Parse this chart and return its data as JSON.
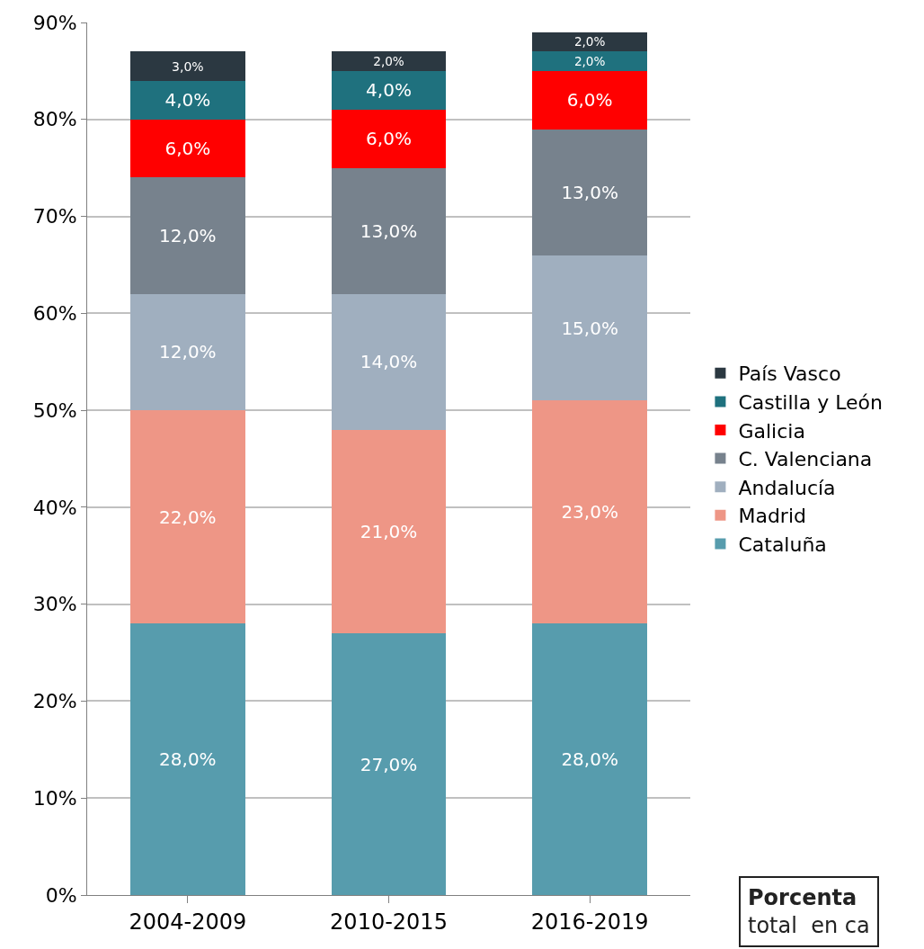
{
  "chart_data": {
    "type": "bar",
    "stacked": true,
    "categories": [
      "2004-2009",
      "2010-2015",
      "2016-2019"
    ],
    "series": [
      {
        "name": "Cataluña",
        "color": "#579cad",
        "values": [
          28,
          27,
          28
        ],
        "value_labels": [
          "28,0%",
          "27,0%",
          "28,0%"
        ]
      },
      {
        "name": "Madrid",
        "color": "#ee9686",
        "values": [
          22,
          21,
          23
        ],
        "value_labels": [
          "22,0%",
          "21,0%",
          "23,0%"
        ]
      },
      {
        "name": "Andalucía",
        "color": "#a0afbf",
        "values": [
          12,
          14,
          15
        ],
        "value_labels": [
          "12,0%",
          "14,0%",
          "15,0%"
        ]
      },
      {
        "name": "C. Valenciana",
        "color": "#77828d",
        "values": [
          12,
          13,
          13
        ],
        "value_labels": [
          "12,0%",
          "13,0%",
          "13,0%"
        ]
      },
      {
        "name": "Galicia",
        "color": "#ff0000",
        "values": [
          6,
          6,
          6
        ],
        "value_labels": [
          "6,0%",
          "6,0%",
          "6,0%"
        ]
      },
      {
        "name": "Castilla y León",
        "color": "#1f717e",
        "values": [
          4,
          4,
          2
        ],
        "value_labels": [
          "4,0%",
          "4,0%",
          "2,0%"
        ]
      },
      {
        "name": "País Vasco",
        "color": "#2b3841",
        "values": [
          3,
          2,
          2
        ],
        "value_labels": [
          "3,0%",
          "2,0%",
          "2,0%"
        ]
      }
    ],
    "ylim": [
      0,
      90
    ],
    "yticks": [
      {
        "value": 0,
        "label": "0%"
      },
      {
        "value": 10,
        "label": "10%"
      },
      {
        "value": 20,
        "label": "20%"
      },
      {
        "value": 30,
        "label": "30%"
      },
      {
        "value": 40,
        "label": "40%"
      },
      {
        "value": 50,
        "label": "50%"
      },
      {
        "value": 60,
        "label": "60%"
      },
      {
        "value": 70,
        "label": "70%"
      },
      {
        "value": 80,
        "label": "80%"
      },
      {
        "value": 90,
        "label": "90%"
      }
    ],
    "grid": "y",
    "legend": "right",
    "annotations": [
      "Porcenta",
      "total  en ca"
    ]
  }
}
